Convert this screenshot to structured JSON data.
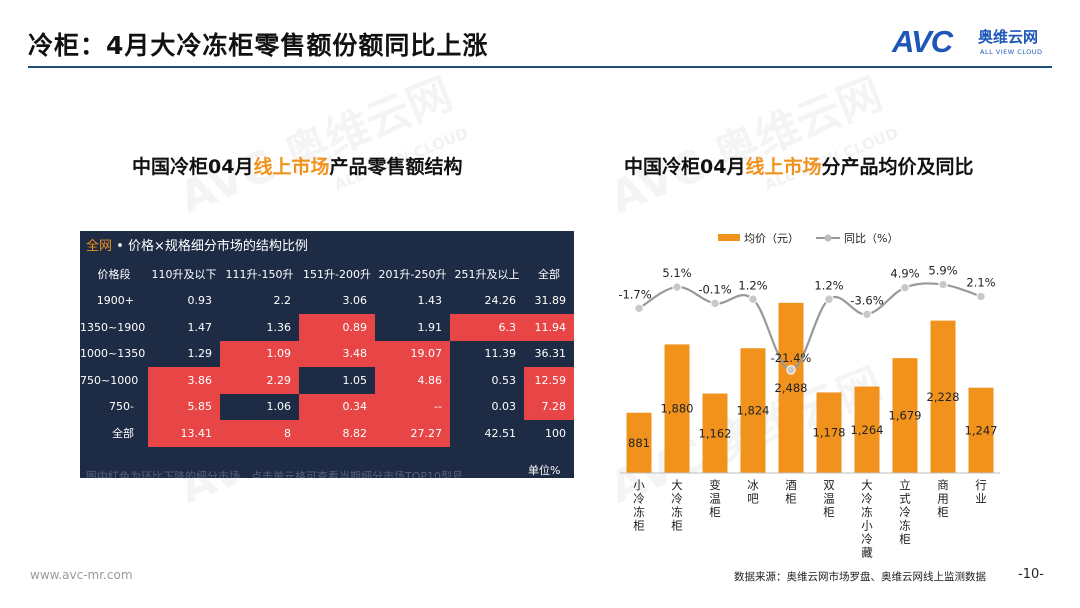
{
  "header": {
    "title": "冷柜：4月大冷冻柜零售额份额同比上涨",
    "logo_mark": "AVC",
    "logo_cn": "奥维云网",
    "logo_en": "ALL VIEW CLOUD"
  },
  "watermark": {
    "text": "AVC 奥维云网",
    "sub": "ALL VIEW CLOUD"
  },
  "left": {
    "title_prefix": "中国冷柜04月",
    "title_highlight": "线上市场",
    "title_suffix": "产品零售额结构",
    "panel_header_accent": "全网",
    "panel_header_rest": " • 价格×规格细分市场的结构比例",
    "footnote": "图中红色为环比下降的细分市场，点击单元格可查看当期细分市场TOP10型号",
    "unit": "单位%",
    "columns": [
      "价格段",
      "110升及以下",
      "111升-150升",
      "151升-200升",
      "201升-250升",
      "251升及以上",
      "全部"
    ],
    "rows": [
      {
        "label": "1900+",
        "cells": [
          "0.93",
          "2.2",
          "3.06",
          "1.43",
          "24.26",
          "31.89"
        ],
        "red": [
          false,
          false,
          false,
          false,
          false,
          false
        ]
      },
      {
        "label": "1350~1900",
        "cells": [
          "1.47",
          "1.36",
          "0.89",
          "1.91",
          "6.3",
          "11.94"
        ],
        "red": [
          false,
          false,
          true,
          false,
          true,
          true
        ]
      },
      {
        "label": "1000~1350",
        "cells": [
          "1.29",
          "1.09",
          "3.48",
          "19.07",
          "11.39",
          "36.31"
        ],
        "red": [
          false,
          true,
          true,
          true,
          false,
          false
        ]
      },
      {
        "label": "750~1000",
        "cells": [
          "3.86",
          "2.29",
          "1.05",
          "4.86",
          "0.53",
          "12.59"
        ],
        "red": [
          true,
          true,
          false,
          true,
          false,
          true
        ]
      },
      {
        "label": "750-",
        "cells": [
          "5.85",
          "1.06",
          "0.34",
          "--",
          "0.03",
          "7.28"
        ],
        "red": [
          true,
          false,
          true,
          true,
          false,
          true
        ]
      },
      {
        "label": "全部",
        "cells": [
          "13.41",
          "8",
          "8.82",
          "27.27",
          "42.51",
          "100"
        ],
        "red": [
          true,
          true,
          true,
          true,
          false,
          false
        ]
      }
    ]
  },
  "right": {
    "title_prefix": "中国冷柜04月",
    "title_highlight": "线上市场",
    "title_suffix": "分产品均价及同比"
  },
  "chart_data": {
    "type": "bar",
    "categories": [
      "小冷冻柜",
      "大冷冻柜",
      "变温柜",
      "冰吧",
      "酒柜",
      "双温柜",
      "大冷冻小冷藏",
      "立式冷冻柜",
      "商用柜",
      "行业"
    ],
    "series": [
      {
        "name": "均价（元）",
        "type": "bar",
        "values": [
          881,
          1880,
          1162,
          1824,
          2488,
          1178,
          1264,
          1679,
          2228,
          1247
        ],
        "labels": [
          "881",
          "1,880",
          "1,162",
          "1,824",
          "2,488",
          "1,178",
          "1,264",
          "1,679",
          "2,228",
          "1,247"
        ],
        "color": "#f0921c"
      },
      {
        "name": "同比（%）",
        "type": "line",
        "values": [
          -1.7,
          5.1,
          -0.1,
          1.2,
          -21.4,
          1.2,
          -3.6,
          4.9,
          5.9,
          2.1
        ],
        "labels": [
          "-1.7%",
          "5.1%",
          "-0.1%",
          "1.2%",
          "-21.4%",
          "1.2%",
          "-3.6%",
          "4.9%",
          "5.9%",
          "2.1%"
        ],
        "color": "#999999"
      }
    ],
    "legend_position": "top",
    "ylim": [
      0,
      2500
    ]
  },
  "footer": {
    "website": "www.avc-mr.com",
    "source": "数据来源：奥维云网市场罗盘、奥维云网线上监测数据",
    "page": "-10-"
  }
}
